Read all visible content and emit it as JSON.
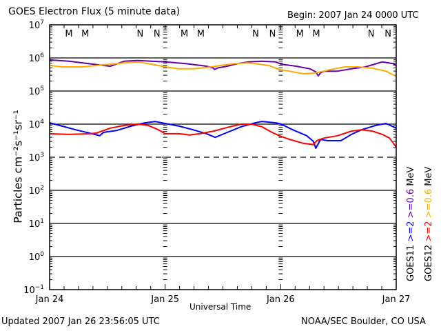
{
  "title": "GOES Electron Flux (5 minute data)",
  "begin": "Begin: 2007 Jan 24 0000 UTC",
  "updated": "Updated 2007 Jan 26 23:56:05 UTC",
  "credit": "NOAA/SEC Boulder, CO USA",
  "chart_data": {
    "type": "line",
    "title": "GOES Electron Flux (5 minute data)",
    "xlabel": "Universal Time",
    "ylabel": "Particles cm⁻²s⁻¹sr⁻¹",
    "yscale": "log",
    "ylim_log10": [
      -1,
      7
    ],
    "xlim_hours": [
      0,
      72
    ],
    "x_tick_labels": [
      {
        "hour": 0,
        "label": "Jan 24"
      },
      {
        "hour": 24,
        "label": "Jan 25"
      },
      {
        "hour": 48,
        "label": "Jan 26"
      },
      {
        "hour": 72,
        "label": "Jan 27"
      }
    ],
    "y_tick_labels": [
      {
        "exp": 7,
        "label": "10",
        "sup": "7"
      },
      {
        "exp": 6,
        "label": "10",
        "sup": "6"
      },
      {
        "exp": 5,
        "label": "10",
        "sup": "5"
      },
      {
        "exp": 4,
        "label": "10",
        "sup": "4"
      },
      {
        "exp": 3,
        "label": "10",
        "sup": "3"
      },
      {
        "exp": 2,
        "label": "10",
        "sup": "2"
      },
      {
        "exp": 1,
        "label": "10",
        "sup": "1"
      },
      {
        "exp": 0,
        "label": "10",
        "sup": "0"
      },
      {
        "exp": -1,
        "label": "10",
        "sup": "−1"
      }
    ],
    "reference_lines": [
      {
        "exp": 6,
        "style": "solid"
      },
      {
        "exp": 5,
        "style": "solid"
      },
      {
        "exp": 4,
        "style": "solid"
      },
      {
        "exp": 3,
        "style": "dashed"
      },
      {
        "exp": 2,
        "style": "solid"
      },
      {
        "exp": 1,
        "style": "solid"
      },
      {
        "exp": 0,
        "style": "solid"
      }
    ],
    "markers": [
      {
        "hour": 4.0,
        "label": "M",
        "color": "#ff0000"
      },
      {
        "hour": 7.4,
        "label": "M",
        "color": "#0000ff"
      },
      {
        "hour": 18.8,
        "label": "N",
        "color": "#ff0000"
      },
      {
        "hour": 22.3,
        "label": "N",
        "color": "#0000ff"
      },
      {
        "hour": 28.0,
        "label": "M",
        "color": "#ff0000"
      },
      {
        "hour": 31.4,
        "label": "M",
        "color": "#0000ff"
      },
      {
        "hour": 42.8,
        "label": "N",
        "color": "#ff0000"
      },
      {
        "hour": 46.3,
        "label": "N",
        "color": "#0000ff"
      },
      {
        "hour": 52.0,
        "label": "M",
        "color": "#ff0000"
      },
      {
        "hour": 55.4,
        "label": "M",
        "color": "#0000ff"
      },
      {
        "hour": 66.8,
        "label": "N",
        "color": "#ff0000"
      },
      {
        "hour": 70.3,
        "label": "N",
        "color": "#0000ff"
      }
    ],
    "legend": {
      "placement": "right",
      "groups": [
        {
          "satellite": "GOES11",
          "entries": [
            {
              "label": ">=2",
              "color": "#0000ff"
            },
            {
              "label": ">=0.6",
              "color": "#6600aa"
            }
          ],
          "unit": "MeV"
        },
        {
          "satellite": "GOES12",
          "entries": [
            {
              "label": ">=2",
              "color": "#ff0000"
            },
            {
              "label": ">=0.6",
              "color": "#ffaa00"
            }
          ],
          "unit": "MeV"
        }
      ]
    },
    "series": [
      {
        "name": "GOES11 >=0.6 MeV",
        "color": "#6600aa",
        "points": [
          [
            0,
            5.94
          ],
          [
            4.0,
            5.9
          ],
          [
            6.9,
            5.85
          ],
          [
            11.2,
            5.77
          ],
          [
            12.6,
            5.75
          ],
          [
            15.5,
            5.9
          ],
          [
            18.3,
            5.92
          ],
          [
            24.0,
            5.88
          ],
          [
            28.3,
            5.83
          ],
          [
            32.6,
            5.75
          ],
          [
            34.1,
            5.69
          ],
          [
            34.2,
            5.65
          ],
          [
            35.0,
            5.7
          ],
          [
            36.9,
            5.75
          ],
          [
            39.1,
            5.83
          ],
          [
            41.2,
            5.88
          ],
          [
            44.1,
            5.9
          ],
          [
            47.0,
            5.88
          ],
          [
            48.1,
            5.81
          ],
          [
            51.2,
            5.75
          ],
          [
            54.1,
            5.67
          ],
          [
            55.3,
            5.58
          ],
          [
            55.8,
            5.46
          ],
          [
            56.3,
            5.55
          ],
          [
            57.0,
            5.6
          ],
          [
            59.8,
            5.6
          ],
          [
            62.7,
            5.67
          ],
          [
            65.6,
            5.73
          ],
          [
            69.1,
            5.88
          ],
          [
            71.3,
            5.83
          ],
          [
            72,
            5.77
          ]
        ]
      },
      {
        "name": "GOES12 >=0.6 MeV",
        "color": "#ffaa00",
        "points": [
          [
            0,
            5.77
          ],
          [
            2.6,
            5.73
          ],
          [
            6.9,
            5.73
          ],
          [
            9.7,
            5.77
          ],
          [
            12.6,
            5.81
          ],
          [
            15.5,
            5.85
          ],
          [
            18.3,
            5.88
          ],
          [
            21.2,
            5.81
          ],
          [
            24.0,
            5.73
          ],
          [
            26.9,
            5.67
          ],
          [
            29.8,
            5.67
          ],
          [
            32.6,
            5.71
          ],
          [
            35.5,
            5.77
          ],
          [
            38.4,
            5.83
          ],
          [
            41.2,
            5.85
          ],
          [
            42.7,
            5.83
          ],
          [
            45.5,
            5.77
          ],
          [
            47.7,
            5.65
          ],
          [
            49.8,
            5.6
          ],
          [
            52.7,
            5.52
          ],
          [
            54.8,
            5.54
          ],
          [
            56.3,
            5.58
          ],
          [
            58.4,
            5.65
          ],
          [
            61.3,
            5.73
          ],
          [
            64.1,
            5.73
          ],
          [
            67.0,
            5.69
          ],
          [
            69.9,
            5.6
          ],
          [
            72,
            5.44
          ]
        ]
      },
      {
        "name": "GOES11 >=2 MeV",
        "color": "#0000ff",
        "points": [
          [
            0,
            4.04
          ],
          [
            2.6,
            3.94
          ],
          [
            5.4,
            3.83
          ],
          [
            8.3,
            3.73
          ],
          [
            10.4,
            3.65
          ],
          [
            11.2,
            3.75
          ],
          [
            14.0,
            3.81
          ],
          [
            16.9,
            3.94
          ],
          [
            19.8,
            4.04
          ],
          [
            21.9,
            4.08
          ],
          [
            24.0,
            4.02
          ],
          [
            26.9,
            3.94
          ],
          [
            29.8,
            3.83
          ],
          [
            32.6,
            3.71
          ],
          [
            34.4,
            3.6
          ],
          [
            36.9,
            3.75
          ],
          [
            39.8,
            3.92
          ],
          [
            42.7,
            4.04
          ],
          [
            44.1,
            4.08
          ],
          [
            47.0,
            4.04
          ],
          [
            48.1,
            4.0
          ],
          [
            50.5,
            3.83
          ],
          [
            53.4,
            3.65
          ],
          [
            54.8,
            3.48
          ],
          [
            55.3,
            3.27
          ],
          [
            56.3,
            3.54
          ],
          [
            57.7,
            3.5
          ],
          [
            60.5,
            3.5
          ],
          [
            62.7,
            3.69
          ],
          [
            64.8,
            3.83
          ],
          [
            67.7,
            3.96
          ],
          [
            69.9,
            4.02
          ],
          [
            72,
            3.88
          ]
        ]
      },
      {
        "name": "GOES12 >=2 MeV",
        "color": "#ff0000",
        "points": [
          [
            0,
            3.71
          ],
          [
            4.0,
            3.69
          ],
          [
            8.3,
            3.71
          ],
          [
            9.7,
            3.73
          ],
          [
            12.6,
            3.88
          ],
          [
            15.5,
            3.96
          ],
          [
            18.3,
            4.0
          ],
          [
            20.5,
            3.96
          ],
          [
            22.6,
            3.83
          ],
          [
            24.0,
            3.71
          ],
          [
            26.9,
            3.71
          ],
          [
            29.1,
            3.67
          ],
          [
            31.2,
            3.71
          ],
          [
            34.1,
            3.79
          ],
          [
            36.9,
            3.9
          ],
          [
            39.8,
            4.0
          ],
          [
            41.9,
            4.0
          ],
          [
            44.1,
            3.92
          ],
          [
            46.2,
            3.75
          ],
          [
            47.7,
            3.65
          ],
          [
            49.8,
            3.54
          ],
          [
            52.7,
            3.42
          ],
          [
            54.8,
            3.38
          ],
          [
            55.5,
            3.5
          ],
          [
            57.0,
            3.58
          ],
          [
            59.8,
            3.65
          ],
          [
            62.7,
            3.79
          ],
          [
            64.8,
            3.83
          ],
          [
            67.0,
            3.79
          ],
          [
            69.1,
            3.69
          ],
          [
            70.6,
            3.58
          ],
          [
            72,
            3.31
          ]
        ]
      }
    ]
  }
}
